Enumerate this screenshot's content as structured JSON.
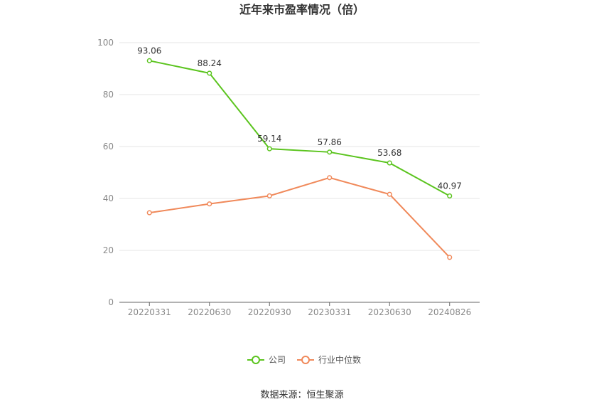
{
  "chart_data": {
    "type": "line",
    "title": "近年来市盈率情况（倍）",
    "categories": [
      "20220331",
      "20220630",
      "20220930",
      "20230331",
      "20230630",
      "20240826"
    ],
    "series": [
      {
        "name": "公司",
        "color": "#5bc41e",
        "values": [
          93.06,
          88.24,
          59.14,
          57.86,
          53.68,
          40.97
        ],
        "labels": [
          "93.06",
          "88.24",
          "59.14",
          "57.86",
          "53.68",
          "40.97"
        ]
      },
      {
        "name": "行业中位数",
        "color": "#f0895a",
        "values": [
          34.5,
          37.9,
          41.0,
          48.0,
          41.6,
          17.3
        ]
      }
    ],
    "ylim": [
      0,
      100
    ],
    "yticks": [
      0,
      20,
      40,
      60,
      80,
      100
    ],
    "grid": true,
    "legend_position": "bottom"
  },
  "source_text": "数据来源：恒生聚源"
}
